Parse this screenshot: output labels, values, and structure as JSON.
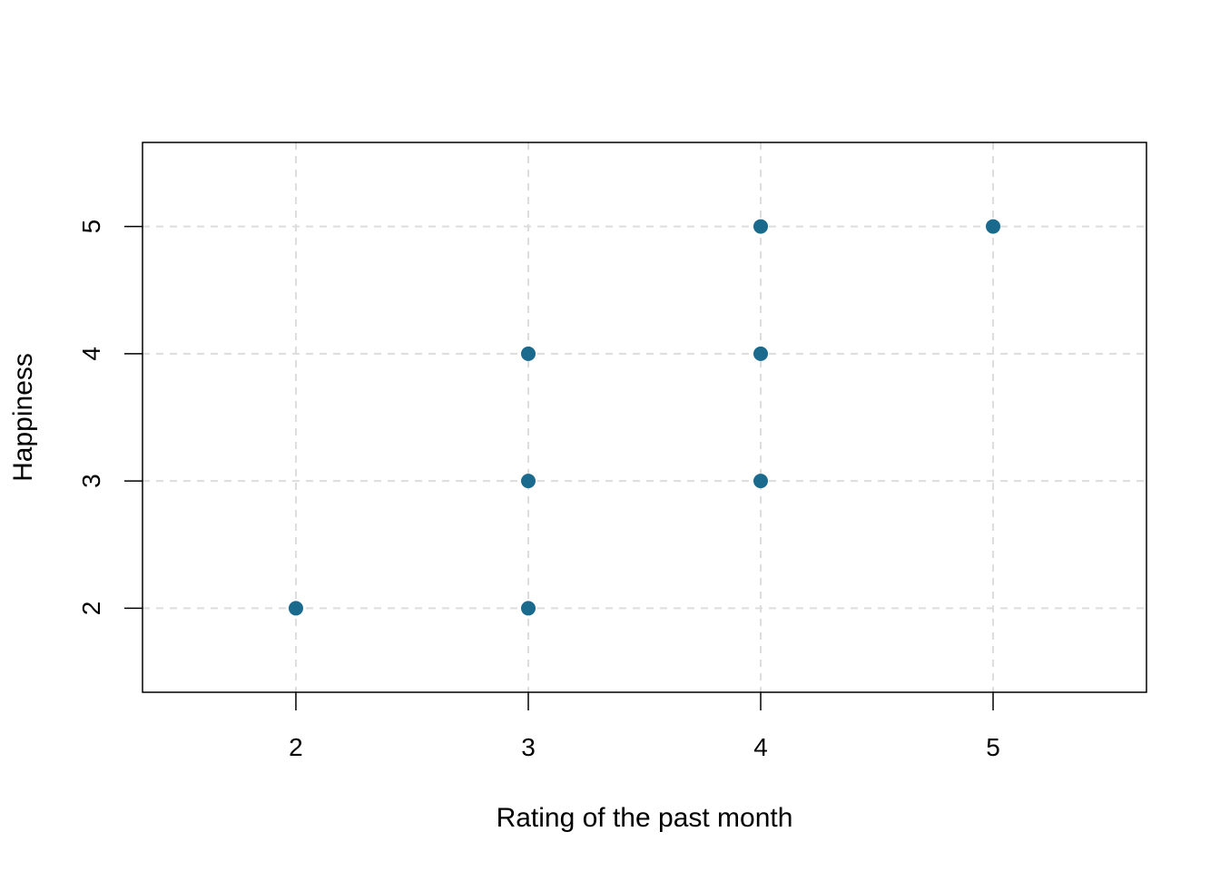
{
  "chart_data": {
    "type": "scatter",
    "title": "",
    "xlabel": "Rating of the past month",
    "ylabel": "Happiness",
    "xlim": [
      1.34,
      5.66
    ],
    "ylim": [
      1.34,
      5.66
    ],
    "x_ticks": [
      2,
      3,
      4,
      5
    ],
    "y_ticks": [
      2,
      3,
      4,
      5
    ],
    "grid": true,
    "point_color": "#1a6a8e",
    "grid_color": "#dddddd",
    "points": [
      {
        "x": 2,
        "y": 2
      },
      {
        "x": 3,
        "y": 2
      },
      {
        "x": 3,
        "y": 3
      },
      {
        "x": 3,
        "y": 4
      },
      {
        "x": 4,
        "y": 3
      },
      {
        "x": 4,
        "y": 4
      },
      {
        "x": 4,
        "y": 5
      },
      {
        "x": 5,
        "y": 5
      }
    ]
  }
}
